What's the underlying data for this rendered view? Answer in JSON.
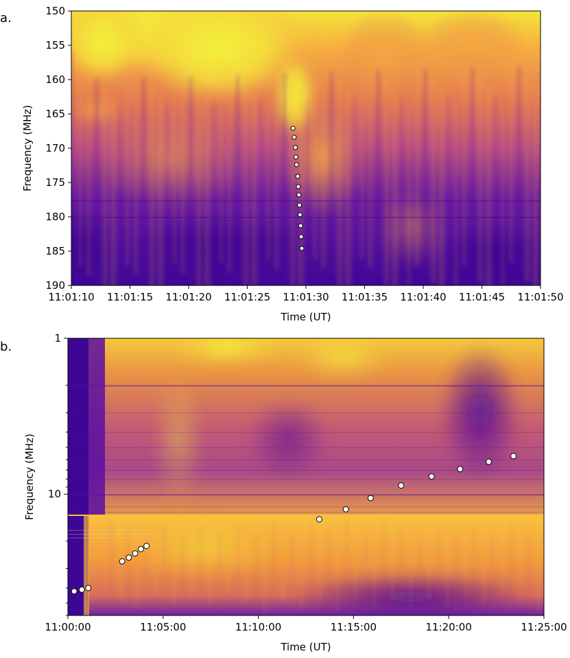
{
  "chart_data": [
    {
      "panel_label": "a.",
      "type": "heatmap",
      "xlabel": "Time (UT)",
      "ylabel": "Frequency (MHz)",
      "x_tick_labels": [
        "11:01:10",
        "11:01:15",
        "11:01:20",
        "11:01:25",
        "11:01:30",
        "11:01:35",
        "11:01:40",
        "11:01:45",
        "11:01:50"
      ],
      "x_tick_seconds": [
        0,
        5,
        10,
        15,
        20,
        25,
        30,
        35,
        40
      ],
      "xlim_seconds": [
        0,
        40
      ],
      "y_tick_labels": [
        "150",
        "155",
        "160",
        "165",
        "170",
        "175",
        "180",
        "185",
        "190"
      ],
      "y_tick_values": [
        150,
        155,
        160,
        165,
        170,
        175,
        180,
        185,
        190
      ],
      "ylim": [
        150,
        190
      ],
      "y_inverted": true,
      "colormap": "plasma",
      "markers": {
        "x_seconds": [
          18.9,
          19.0,
          19.1,
          19.15,
          19.2,
          19.3,
          19.35,
          19.4,
          19.45,
          19.5,
          19.55,
          19.6,
          19.65
        ],
        "y": [
          167.1,
          168.4,
          169.9,
          171.3,
          172.4,
          174.1,
          175.6,
          176.8,
          178.3,
          179.7,
          181.3,
          182.9,
          184.6
        ]
      }
    },
    {
      "panel_label": "b.",
      "type": "heatmap",
      "xlabel": "Time (UT)",
      "ylabel": "Frequency (MHz)",
      "x_tick_labels": [
        "11:00:00",
        "11:05:00",
        "11:10:00",
        "11:15:00",
        "11:20:00",
        "11:25:00"
      ],
      "x_tick_minutes": [
        0,
        5,
        10,
        15,
        20,
        25
      ],
      "xlim_minutes": [
        0,
        25
      ],
      "y_scale": "log",
      "y_tick_labels": [
        "1",
        "10"
      ],
      "y_tick_values": [
        1,
        10
      ],
      "ylim": [
        1,
        60
      ],
      "y_inverted": true,
      "colormap": "plasma",
      "markers": {
        "x_minutes": [
          0.33,
          0.73,
          1.07,
          2.85,
          3.2,
          3.53,
          3.83,
          4.13,
          13.2,
          14.6,
          15.9,
          17.5,
          19.1,
          20.6,
          22.1,
          23.4
        ],
        "y": [
          42,
          41,
          40,
          27,
          25.5,
          24,
          22.5,
          21.5,
          14.5,
          12.5,
          10.6,
          8.8,
          7.7,
          6.9,
          6.2,
          5.7
        ]
      }
    }
  ]
}
